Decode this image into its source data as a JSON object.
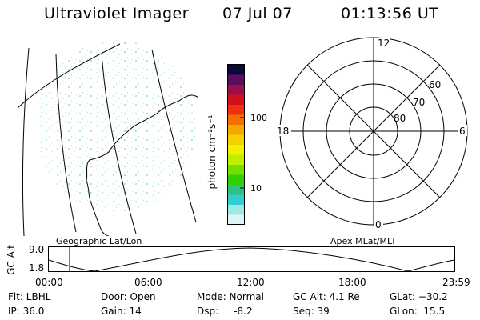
{
  "header": {
    "title": "Ultraviolet Imager",
    "date": "07 Jul 07",
    "time": "01:13:56 UT"
  },
  "left_panel": {
    "label": "Geographic Lat/Lon"
  },
  "colorbar": {
    "unit_label": "photon cm⁻²s⁻¹",
    "tick_labels": [
      "100",
      "10"
    ],
    "colors": [
      "#0a0a3a",
      "#5a0f5e",
      "#9c0f4a",
      "#d01020",
      "#f03010",
      "#f07000",
      "#f5a800",
      "#f5d000",
      "#f0f000",
      "#c0f000",
      "#70e000",
      "#30d000",
      "#30c080",
      "#30d0d0",
      "#a0e8e8",
      "#e0f4f4"
    ]
  },
  "polar_plot": {
    "label": "Apex MLat/MLT",
    "mlt_labels": [
      "12",
      "18",
      "6",
      "0"
    ],
    "lat_labels": [
      "60",
      "70",
      "80"
    ]
  },
  "timeline": {
    "ylabel": "GC Alt",
    "yticks": [
      "9.0",
      "1.8"
    ],
    "xticks": [
      "00:00",
      "06:00",
      "12:00",
      "18:00",
      "23:59"
    ],
    "marker_time": "01:14",
    "marker_fraction": 0.0513,
    "marker_color": "#ff0000"
  },
  "info": {
    "flt": "Flt: LBHL",
    "ip": "IP: 36.0",
    "door": "Door: Open",
    "gain": "Gain: 14",
    "mode": "Mode: Normal",
    "dsp": "Dsp:     -8.2",
    "gc_alt": "GC Alt: 4.1 Re",
    "seq": "Seq: 39",
    "glat": "GLat: −30.2",
    "glon": "GLon:  15.5"
  }
}
